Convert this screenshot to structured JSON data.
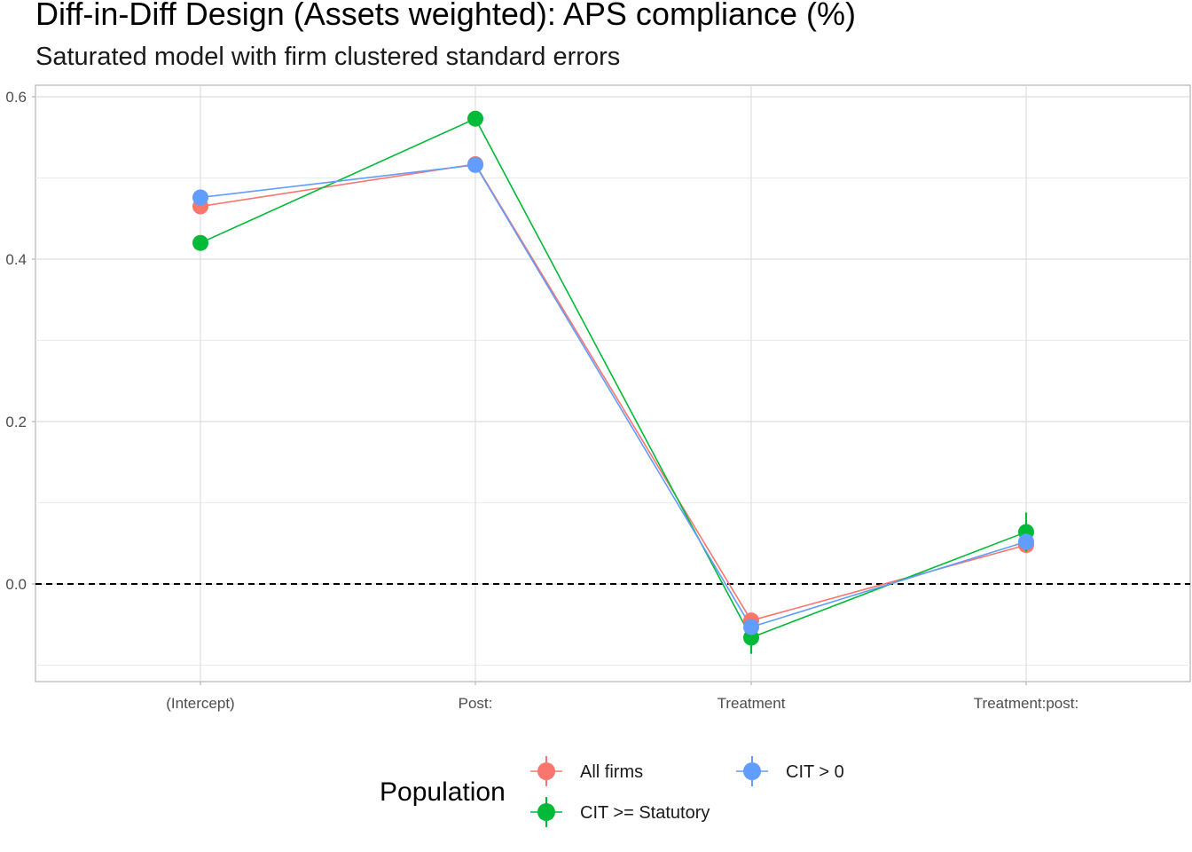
{
  "title": "Diff-in-Diff Design (Assets weighted): APS compliance (%)",
  "subtitle": "Saturated model with firm clustered standard errors",
  "chart_data": {
    "type": "line",
    "categories": [
      "(Intercept)",
      "Post:",
      "Treatment",
      "Treatment:post:"
    ],
    "y_ticks": [
      "0.0",
      "0.2",
      "0.4",
      "0.6"
    ],
    "ylim": [
      -0.12,
      0.61
    ],
    "grid": true,
    "reference_line": {
      "y": 0,
      "style": "dashed",
      "color": "#000000"
    },
    "legend": {
      "title": "Population",
      "position": "bottom"
    },
    "series": [
      {
        "name": "All firms",
        "color": "#F8766D",
        "values": [
          0.465,
          0.517,
          -0.045,
          0.048
        ],
        "errors": [
          0.004,
          0.004,
          0.008,
          0.01
        ]
      },
      {
        "name": "CIT >= Statutory",
        "color": "#00BA38",
        "values": [
          0.42,
          0.573,
          -0.066,
          0.064
        ],
        "errors": [
          0.004,
          0.004,
          0.02,
          0.024
        ]
      },
      {
        "name": "CIT > 0",
        "color": "#619CFF",
        "values": [
          0.476,
          0.516,
          -0.053,
          0.052
        ],
        "errors": [
          0.004,
          0.004,
          0.008,
          0.01
        ]
      }
    ]
  }
}
